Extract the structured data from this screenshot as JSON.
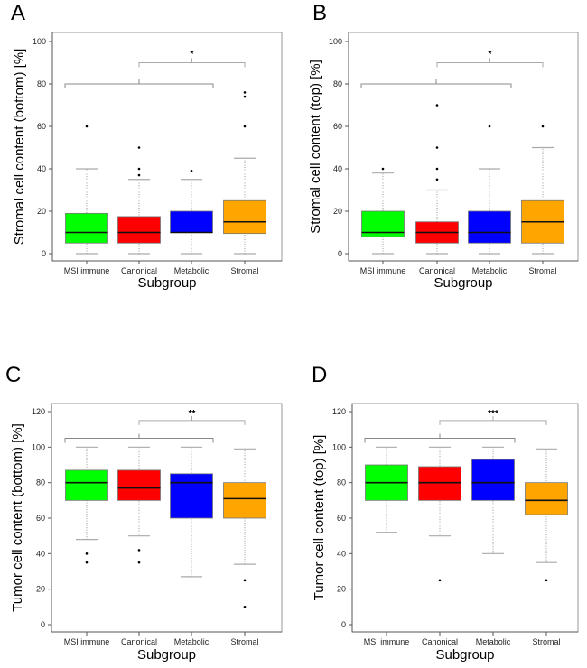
{
  "colors": {
    "MSI immune": "#00ff00",
    "Canonical": "#ff0000",
    "Metabolic": "#0000ff",
    "Stromal": "#ffa500"
  },
  "chart_data": [
    {
      "panel": "A",
      "type": "box",
      "ylabel": "Stromal cell content (bottom) [%]",
      "xlabel": "Subgroup",
      "ylim": [
        0,
        100
      ],
      "yticks": [
        0,
        20,
        40,
        60,
        80,
        100
      ],
      "categories": [
        "MSI immune",
        "Canonical",
        "Metabolic",
        "Stromal"
      ],
      "boxes": [
        {
          "min": 0,
          "q1": 5,
          "median": 10,
          "q3": 19,
          "max": 40,
          "outliers": [
            60
          ]
        },
        {
          "min": 0,
          "q1": 5,
          "median": 10,
          "q3": 17.5,
          "max": 35,
          "outliers": [
            37,
            40,
            50
          ]
        },
        {
          "min": 0,
          "q1": 10,
          "median": 10,
          "q3": 20,
          "max": 35,
          "outliers": [
            39
          ]
        },
        {
          "min": 0,
          "q1": 9.5,
          "median": 15,
          "q3": 25,
          "max": 45,
          "outliers": [
            60,
            74,
            76
          ]
        }
      ],
      "comparison": {
        "lower_bracket": 80,
        "upper_bracket": 90,
        "significance": "*",
        "significance_y": 95
      }
    },
    {
      "panel": "B",
      "type": "box",
      "ylabel": "Stromal cell content (top) [%]",
      "xlabel": "Subgroup",
      "ylim": [
        0,
        100
      ],
      "yticks": [
        0,
        20,
        40,
        60,
        80,
        100
      ],
      "categories": [
        "MSI immune",
        "Canonical",
        "Metabolic",
        "Stromal"
      ],
      "boxes": [
        {
          "min": 0,
          "q1": 8,
          "median": 10,
          "q3": 20,
          "max": 38,
          "outliers": [
            40
          ]
        },
        {
          "min": 0,
          "q1": 5,
          "median": 10,
          "q3": 15,
          "max": 30,
          "outliers": [
            35,
            40,
            50,
            70
          ]
        },
        {
          "min": 0,
          "q1": 5,
          "median": 10,
          "q3": 20,
          "max": 40,
          "outliers": [
            60
          ]
        },
        {
          "min": 0,
          "q1": 5,
          "median": 15,
          "q3": 25,
          "max": 50,
          "outliers": [
            60
          ]
        }
      ],
      "comparison": {
        "lower_bracket": 80,
        "upper_bracket": 90,
        "significance": "*",
        "significance_y": 95
      }
    },
    {
      "panel": "C",
      "type": "box",
      "ylabel": "Tumor cell content (bottom) [%]",
      "xlabel": "Subgroup",
      "ylim": [
        0,
        120
      ],
      "yticks": [
        0,
        20,
        40,
        60,
        80,
        100,
        120
      ],
      "categories": [
        "MSI immune",
        "Canonical",
        "Metabolic",
        "Stromal"
      ],
      "boxes": [
        {
          "min": 48,
          "q1": 70,
          "median": 80,
          "q3": 87,
          "max": 100,
          "outliers": [
            35,
            40
          ]
        },
        {
          "min": 50,
          "q1": 70,
          "median": 77,
          "q3": 87,
          "max": 100,
          "outliers": [
            35,
            42
          ]
        },
        {
          "min": 27,
          "q1": 60,
          "median": 80,
          "q3": 85,
          "max": 100,
          "outliers": []
        },
        {
          "min": 34,
          "q1": 60,
          "median": 71,
          "q3": 80,
          "max": 99,
          "outliers": [
            10,
            25
          ]
        }
      ],
      "comparison": {
        "lower_bracket": 105,
        "upper_bracket": 115,
        "significance": "**",
        "significance_y": 120
      }
    },
    {
      "panel": "D",
      "type": "box",
      "ylabel": "Tumor cell content (top) [%]",
      "xlabel": "Subgroup",
      "ylim": [
        0,
        120
      ],
      "yticks": [
        0,
        20,
        40,
        60,
        80,
        100,
        120
      ],
      "categories": [
        "MSI immune",
        "Canonical",
        "Metabolic",
        "Stromal"
      ],
      "boxes": [
        {
          "min": 52,
          "q1": 70,
          "median": 80,
          "q3": 90,
          "max": 100,
          "outliers": []
        },
        {
          "min": 50,
          "q1": 70,
          "median": 80,
          "q3": 89,
          "max": 100,
          "outliers": [
            25
          ]
        },
        {
          "min": 40,
          "q1": 70,
          "median": 80,
          "q3": 93,
          "max": 100,
          "outliers": []
        },
        {
          "min": 35,
          "q1": 62,
          "median": 70,
          "q3": 80,
          "max": 99,
          "outliers": [
            25
          ]
        }
      ],
      "comparison": {
        "lower_bracket": 105,
        "upper_bracket": 115,
        "significance": "***",
        "significance_y": 120
      }
    }
  ]
}
